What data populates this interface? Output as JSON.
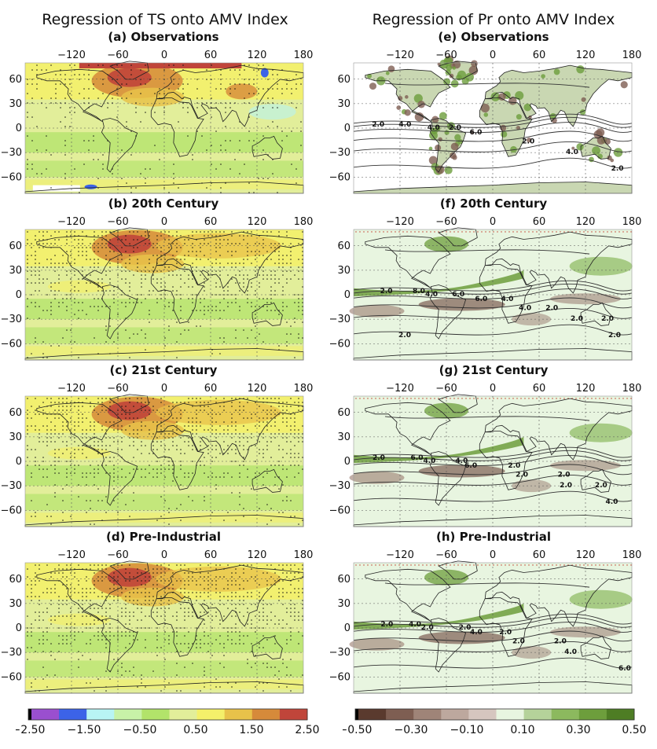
{
  "left_title": "Regression of TS onto AMV Index",
  "right_title": "Regression of Pr onto AMV Index",
  "panels_left": [
    {
      "label": "(a) Observations"
    },
    {
      "label": "(b) 20th Century"
    },
    {
      "label": "(c) 21st Century"
    },
    {
      "label": "(d) Pre-Industrial"
    }
  ],
  "panels_right": [
    {
      "label": "(e) Observations",
      "contours": [
        "2.0",
        "4.0",
        "6.0",
        "2.0",
        "4.0",
        "2.0",
        "4.0",
        "2.0"
      ]
    },
    {
      "label": "(f) 20th Century",
      "contours": [
        "2.0",
        "4.0",
        "6.0",
        "4.0",
        "2.0",
        "2.0",
        "8.0",
        "6.0",
        "4.0",
        "2.0",
        "2.0",
        "2.0"
      ]
    },
    {
      "label": "(g) 21st Century",
      "contours": [
        "2.0",
        "4.0",
        "6.0",
        "2.0",
        "2.0",
        "4.0",
        "6.0",
        "4.0",
        "2.0",
        "2.0",
        "2.0"
      ]
    },
    {
      "label": "(h) Pre-Industrial",
      "contours": [
        "2.0",
        "2.0",
        "4.0",
        "2.0",
        "4.0",
        "6.0",
        "4.0",
        "2.0",
        "2.0",
        "2.0"
      ]
    }
  ],
  "lon_ticks": [
    "−120",
    "−60",
    "0",
    "60",
    "120",
    "180"
  ],
  "lat_ticks": [
    "60",
    "30",
    "0",
    "−30",
    "−60"
  ],
  "ts_colorbar": {
    "colors": [
      "#000000",
      "#9a4fcf",
      "#3c63e8",
      "#b8f4f4",
      "#c8f2a8",
      "#b2e36a",
      "#e2ee9a",
      "#f4f06a",
      "#e8c24a",
      "#d68a3a",
      "#c0453a"
    ],
    "labels": [
      "−2.50",
      "−1.50",
      "−0.50",
      "0.50",
      "1.50",
      "2.50"
    ]
  },
  "pr_colorbar": {
    "colors": [
      "#000000",
      "#5a3a2e",
      "#7e5e52",
      "#9f8478",
      "#bda89e",
      "#d6c6bf",
      "#e8f5e0",
      "#b5d29a",
      "#8cb95e",
      "#6d9e3c",
      "#4e7d24"
    ],
    "labels": [
      "−0.50",
      "−0.30",
      "−0.10",
      "0.10",
      "0.30",
      "0.50"
    ]
  }
}
